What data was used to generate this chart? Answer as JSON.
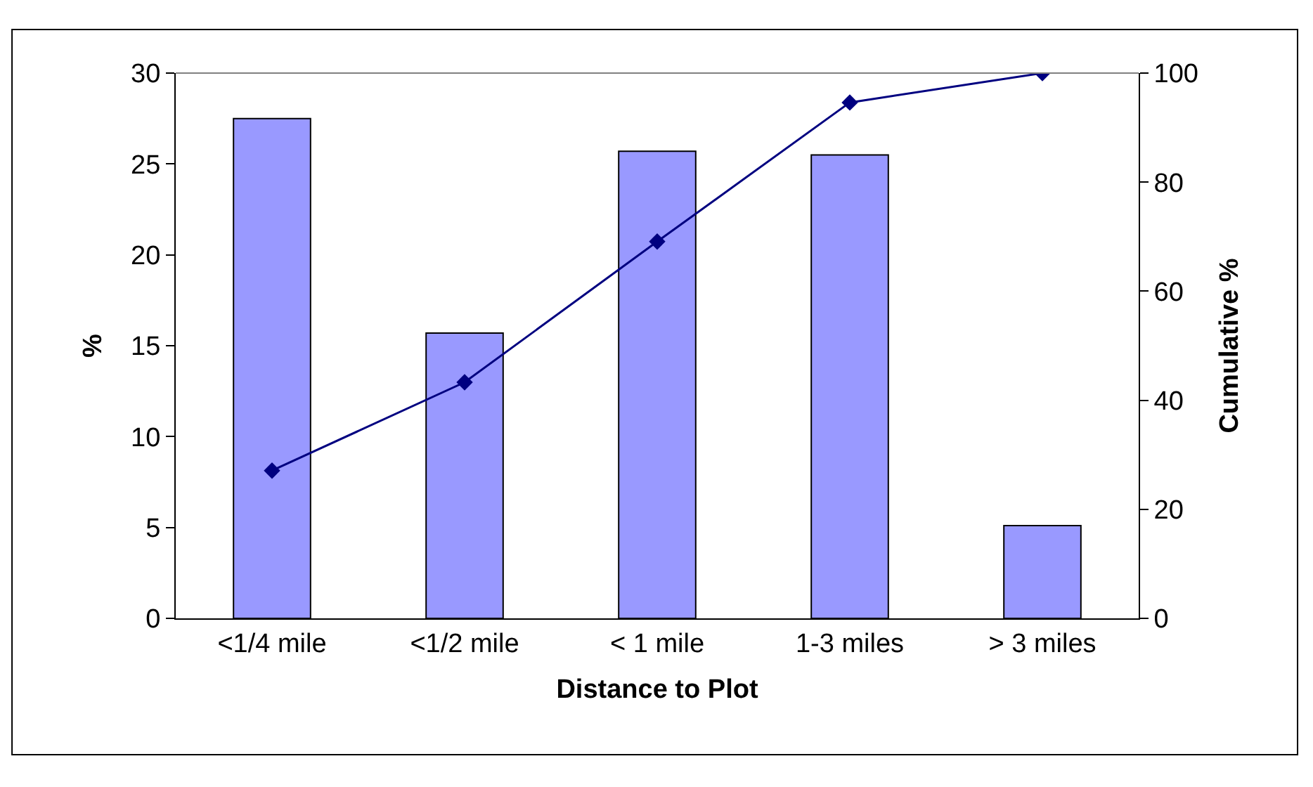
{
  "chart_data": {
    "type": "bar",
    "xlabel": "Distance to Plot",
    "ylabel": "%",
    "y2label": "Cumulative %",
    "categories": [
      "<1/4 mile",
      "<1/2 mile",
      "< 1 mile",
      "1-3 miles",
      "> 3 miles"
    ],
    "series": [
      {
        "color": "#9999ff",
        "values": [
          27.5,
          15.7,
          25.7,
          25.5,
          5.1
        ]
      },
      {
        "type": "line",
        "axis": "y2",
        "color": "#000080",
        "marker": "diamond",
        "values": [
          27.1,
          43.3,
          69.1,
          94.6,
          100
        ]
      }
    ],
    "ylim": [
      0,
      30
    ],
    "yticks": [
      0,
      5,
      10,
      15,
      20,
      25,
      30
    ],
    "y2lim": [
      0,
      100
    ],
    "y2ticks": [
      0,
      20,
      40,
      60,
      80,
      100
    ]
  }
}
